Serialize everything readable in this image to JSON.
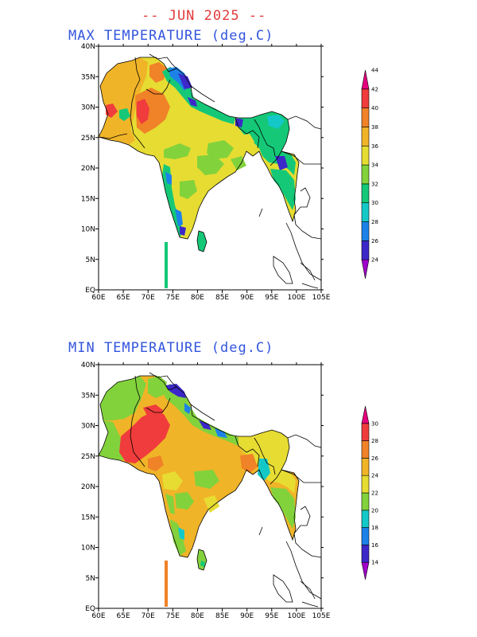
{
  "title": "-- JUN 2025 --",
  "panels": [
    {
      "title": "MAX TEMPERATURE (deg.C)",
      "x_labels": [
        "60E",
        "65E",
        "70E",
        "75E",
        "80E",
        "85E",
        "90E",
        "95E",
        "100E",
        "105E"
      ],
      "y_labels": [
        "EQ",
        "5N",
        "10N",
        "15N",
        "20N",
        "25N",
        "30N",
        "35N",
        "40N"
      ],
      "legend": {
        "values": [
          "24",
          "26",
          "28",
          "30",
          "32",
          "34",
          "36",
          "38",
          "40",
          "42",
          "44"
        ],
        "colors": [
          "#a000c8",
          "#3c28c8",
          "#1c82e8",
          "#14c8c8",
          "#14c878",
          "#82d23c",
          "#e6dc32",
          "#f0b428",
          "#f08228",
          "#f03c3c",
          "#e6007d"
        ]
      }
    },
    {
      "title": "MIN TEMPERATURE (deg.C)",
      "x_labels": [
        "60E",
        "65E",
        "70E",
        "75E",
        "80E",
        "85E",
        "90E",
        "95E",
        "100E",
        "105E"
      ],
      "y_labels": [
        "EQ",
        "5N",
        "10N",
        "15N",
        "20N",
        "25N",
        "30N",
        "35N",
        "40N"
      ],
      "legend": {
        "values": [
          "14",
          "16",
          "18",
          "20",
          "22",
          "24",
          "26",
          "28",
          "30"
        ],
        "colors": [
          "#a000c8",
          "#3c28c8",
          "#1c82e8",
          "#14c8c8",
          "#82d23c",
          "#e6dc32",
          "#f0b428",
          "#f08228",
          "#f03c3c",
          "#e6007d"
        ]
      }
    }
  ]
}
